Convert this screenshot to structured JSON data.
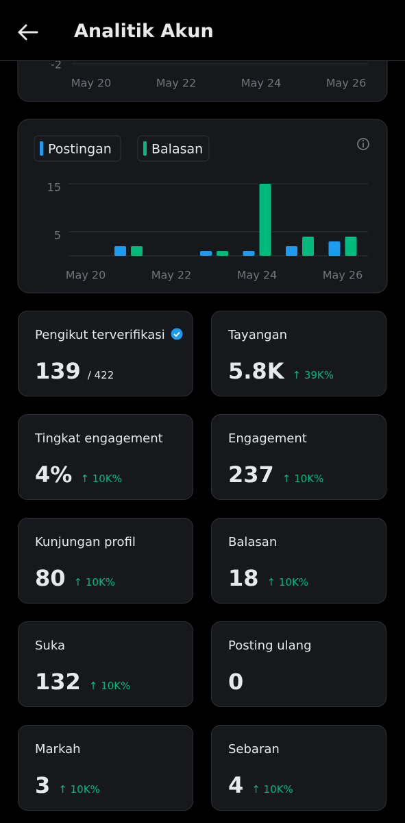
{
  "header": {
    "title": "Analitik Akun"
  },
  "chart_data": [
    {
      "type": "bar",
      "categories": [
        "May 20",
        null,
        "May 22",
        null,
        "May 24",
        null,
        "May 26"
      ],
      "yticks": [
        -2
      ]
    },
    {
      "type": "bar",
      "categories": [
        "May 20",
        null,
        "May 22",
        null,
        "May 24",
        null,
        "May 26"
      ],
      "series": [
        {
          "name": "Postingan",
          "color": "#1d9bf0",
          "values": [
            null,
            2,
            null,
            1,
            1,
            2,
            3
          ]
        },
        {
          "name": "Balasan",
          "color": "#00ba7c",
          "values": [
            null,
            2,
            null,
            1,
            15,
            4,
            4
          ]
        }
      ],
      "ylim": [
        0,
        15
      ],
      "yticks": [
        5,
        15
      ],
      "grid": true
    }
  ],
  "stats": [
    {
      "label": "Pengikut terverifikasi",
      "value": "139",
      "total": "/ 422"
    },
    {
      "label": "Tayangan",
      "value": "5.8K",
      "change": "↑ 39K%"
    },
    {
      "label": "Tingkat engagement",
      "value": "4%",
      "change": "↑ 10K%"
    },
    {
      "label": "Engagement",
      "value": "237",
      "change": "↑ 10K%"
    },
    {
      "label": "Kunjungan profil",
      "value": "80",
      "change": "↑ 10K%"
    },
    {
      "label": "Balasan",
      "value": "18",
      "change": "↑ 10K%"
    },
    {
      "label": "Suka",
      "value": "132",
      "change": "↑ 10K%"
    },
    {
      "label": "Posting ulang",
      "value": "0"
    },
    {
      "label": "Markah",
      "value": "3",
      "change": "↑ 10K%"
    },
    {
      "label": "Sebaran",
      "value": "4",
      "change": "↑ 10K%"
    }
  ]
}
